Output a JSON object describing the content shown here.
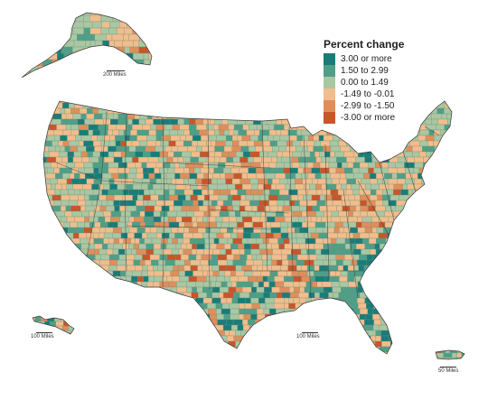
{
  "legend": {
    "title": "Percent change",
    "categories": [
      {
        "label": "3.00 or more",
        "color": "#1a7c78"
      },
      {
        "label": "1.50 to 2.99",
        "color": "#4f9f88"
      },
      {
        "label": "0.00 to 1.49",
        "color": "#a9c7a3"
      },
      {
        "label": "-1.49 to -0.01",
        "color": "#f2bd8c"
      },
      {
        "label": "-2.99 to -1.50",
        "color": "#df8e5b"
      },
      {
        "label": "-3.00 or more",
        "color": "#c9552a"
      }
    ]
  },
  "scale_bars": {
    "alaska": "200 Miles",
    "hawaii": "100 Miles",
    "mainland": "100 Miles",
    "puerto_rico": "50 Miles"
  },
  "colors": {
    "county_border": "#6f8f78",
    "state_border": "#3a3a3a"
  }
}
